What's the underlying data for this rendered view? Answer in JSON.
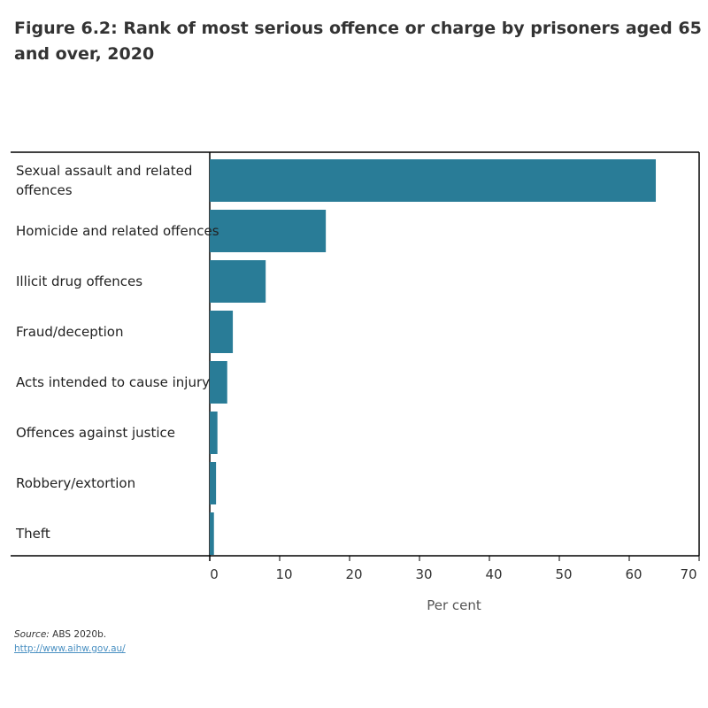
{
  "chart_data": {
    "type": "bar",
    "orientation": "horizontal",
    "title": "Figure 6.2: Rank of most serious offence or charge by prisoners aged 65 and over, 2020",
    "categories": [
      "Sexual assault and related offences",
      "Homicide and related offences",
      "Illicit drug offences",
      "Fraud/deception",
      "Acts intended to cause injury",
      "Offences against justice",
      "Robbery/extortion",
      "Theft"
    ],
    "values": [
      63.8,
      16.6,
      8.0,
      3.3,
      2.5,
      1.1,
      0.9,
      0.6
    ],
    "xlabel": "Per cent",
    "xlim": [
      0,
      70
    ],
    "xticks": [
      "0",
      "10",
      "20",
      "30",
      "40",
      "50",
      "60",
      "70"
    ],
    "grid": false,
    "bar_color": "#297c97"
  },
  "footer": {
    "source_label": "Source:",
    "source_text": " ABS 2020b.",
    "link": "http://www.aihw.gov.au/"
  }
}
